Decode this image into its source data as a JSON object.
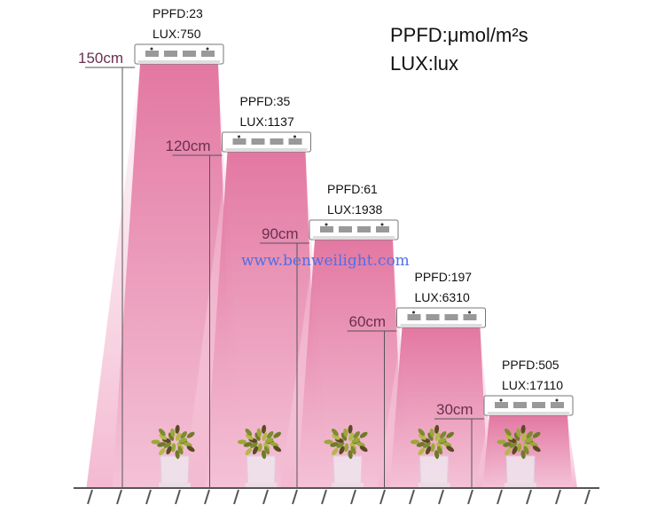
{
  "legend": {
    "ppfd_unit": "PPFD:μmol/m²s",
    "lux_unit": "LUX:lux"
  },
  "watermark": "www.benweilight.com",
  "colors": {
    "beam": "#e77aa5",
    "beam_light": "#f3bcd2",
    "height_label": "#6b2f4f",
    "watermark": "#4f6fe8"
  },
  "lamps": [
    {
      "height": "150cm",
      "height_cm": 150,
      "ppfd": "PPFD:23",
      "lux": "LUX:750"
    },
    {
      "height": "120cm",
      "height_cm": 120,
      "ppfd": "PPFD:35",
      "lux": "LUX:1137"
    },
    {
      "height": "90cm",
      "height_cm": 90,
      "ppfd": "PPFD:61",
      "lux": "LUX:1938"
    },
    {
      "height": "60cm",
      "height_cm": 60,
      "ppfd": "PPFD:197",
      "lux": "LUX:6310"
    },
    {
      "height": "30cm",
      "height_cm": 30,
      "ppfd": "PPFD:505",
      "lux": "LUX:17110"
    }
  ]
}
